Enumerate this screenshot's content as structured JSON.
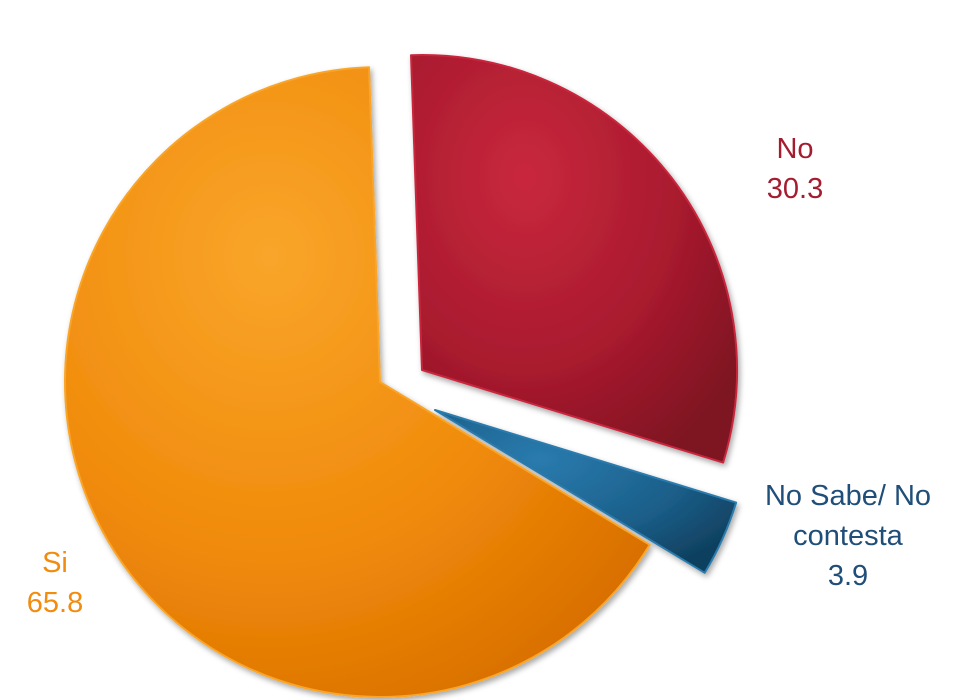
{
  "chart_data": {
    "type": "pie",
    "title": "",
    "slices": [
      {
        "label": "No",
        "value": 30.3,
        "value_text": "30.3",
        "color": "#A81A2E",
        "light": "#C9283D",
        "dark": "#7E1222",
        "text_color": "#A51C30",
        "exploded": true
      },
      {
        "label": "No Sabe/ No contesta",
        "label_lines": [
          "No Sabe/ No",
          "contesta"
        ],
        "value": 3.9,
        "value_text": "3.9",
        "color": "#1B5F8A",
        "light": "#2A7BAE",
        "dark": "#0F3F5E",
        "text_color": "#1F4E79",
        "exploded": true
      },
      {
        "label": "Si",
        "value": 65.8,
        "value_text": "65.8",
        "color": "#F08A0A",
        "light": "#F9A52A",
        "dark": "#D86F00",
        "text_color": "#F28C0F",
        "exploded": false
      }
    ],
    "start_angle_deg": -2,
    "direction": "clockwise",
    "legend": "none",
    "data_labels": "category and value"
  }
}
